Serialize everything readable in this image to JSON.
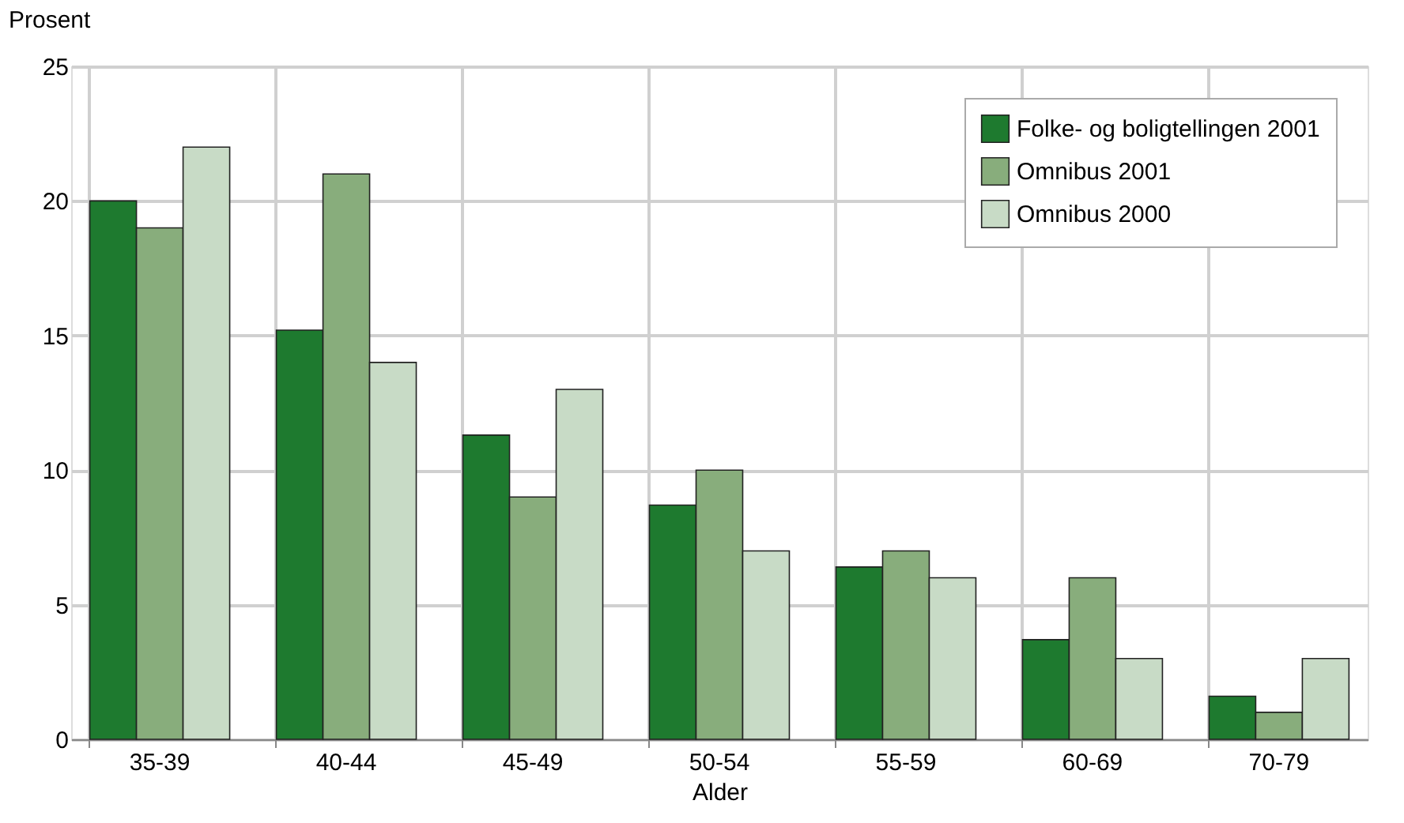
{
  "chart_data": {
    "type": "bar",
    "ylabel": "Prosent",
    "xlabel": "Alder",
    "categories": [
      "35-39",
      "40-44",
      "45-49",
      "50-54",
      "55-59",
      "60-69",
      "70-79"
    ],
    "series": [
      {
        "name": "Folke- og boligtellingen 2001",
        "color": "#1e7a2f",
        "values": [
          20,
          15.2,
          11.3,
          8.7,
          6.4,
          3.7,
          1.6
        ]
      },
      {
        "name": "Omnibus 2001",
        "color": "#88ad7c",
        "values": [
          19,
          21,
          9,
          10,
          7,
          6,
          1
        ]
      },
      {
        "name": "Omnibus 2000",
        "color": "#c8dbc6",
        "values": [
          22,
          14,
          13,
          7,
          6,
          3,
          3
        ]
      }
    ],
    "ylim": [
      0,
      25
    ],
    "yticks": [
      0,
      5,
      10,
      15,
      20,
      25
    ],
    "grid": true,
    "legend": "top right"
  }
}
